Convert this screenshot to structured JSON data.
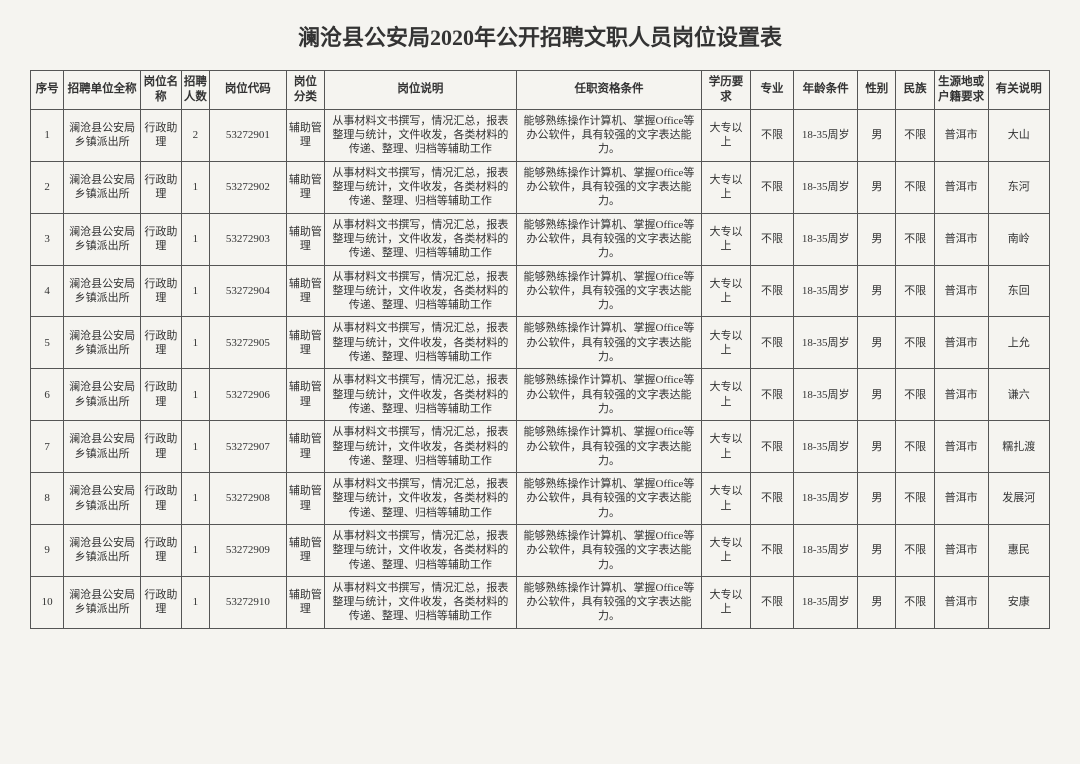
{
  "title": "澜沧县公安局2020年公开招聘文职人员岗位设置表",
  "headers": {
    "seq": "序号",
    "unit": "招聘单位全称",
    "position": "岗位名称",
    "count": "招聘人数",
    "code": "岗位代码",
    "category": "岗位分类",
    "description": "岗位说明",
    "qualification": "任职资格条件",
    "education": "学历要求",
    "major": "专业",
    "age": "年龄条件",
    "gender": "性别",
    "ethnic": "民族",
    "origin": "生源地或户籍要求",
    "note": "有关说明"
  },
  "common": {
    "unit": "澜沧县公安局乡镇派出所",
    "position": "行政助理",
    "category": "辅助管理",
    "description": "从事材料文书撰写，情况汇总，报表整理与统计，文件收发，各类材料的传递、整理、归档等辅助工作",
    "qualification": "能够熟练操作计算机、掌握Office等办公软件，具有较强的文字表达能力。",
    "education": "大专以上",
    "major": "不限",
    "age": "18-35周岁",
    "gender": "男",
    "ethnic": "不限",
    "origin": "普洱市"
  },
  "rows": [
    {
      "seq": "1",
      "count": "2",
      "code": "53272901",
      "note": "大山"
    },
    {
      "seq": "2",
      "count": "1",
      "code": "53272902",
      "note": "东河"
    },
    {
      "seq": "3",
      "count": "1",
      "code": "53272903",
      "note": "南岭"
    },
    {
      "seq": "4",
      "count": "1",
      "code": "53272904",
      "note": "东回"
    },
    {
      "seq": "5",
      "count": "1",
      "code": "53272905",
      "note": "上允"
    },
    {
      "seq": "6",
      "count": "1",
      "code": "53272906",
      "note": "谦六"
    },
    {
      "seq": "7",
      "count": "1",
      "code": "53272907",
      "note": "糯扎渡"
    },
    {
      "seq": "8",
      "count": "1",
      "code": "53272908",
      "note": "发展河"
    },
    {
      "seq": "9",
      "count": "1",
      "code": "53272909",
      "note": "惠民"
    },
    {
      "seq": "10",
      "count": "1",
      "code": "53272910",
      "note": "安康"
    }
  ]
}
